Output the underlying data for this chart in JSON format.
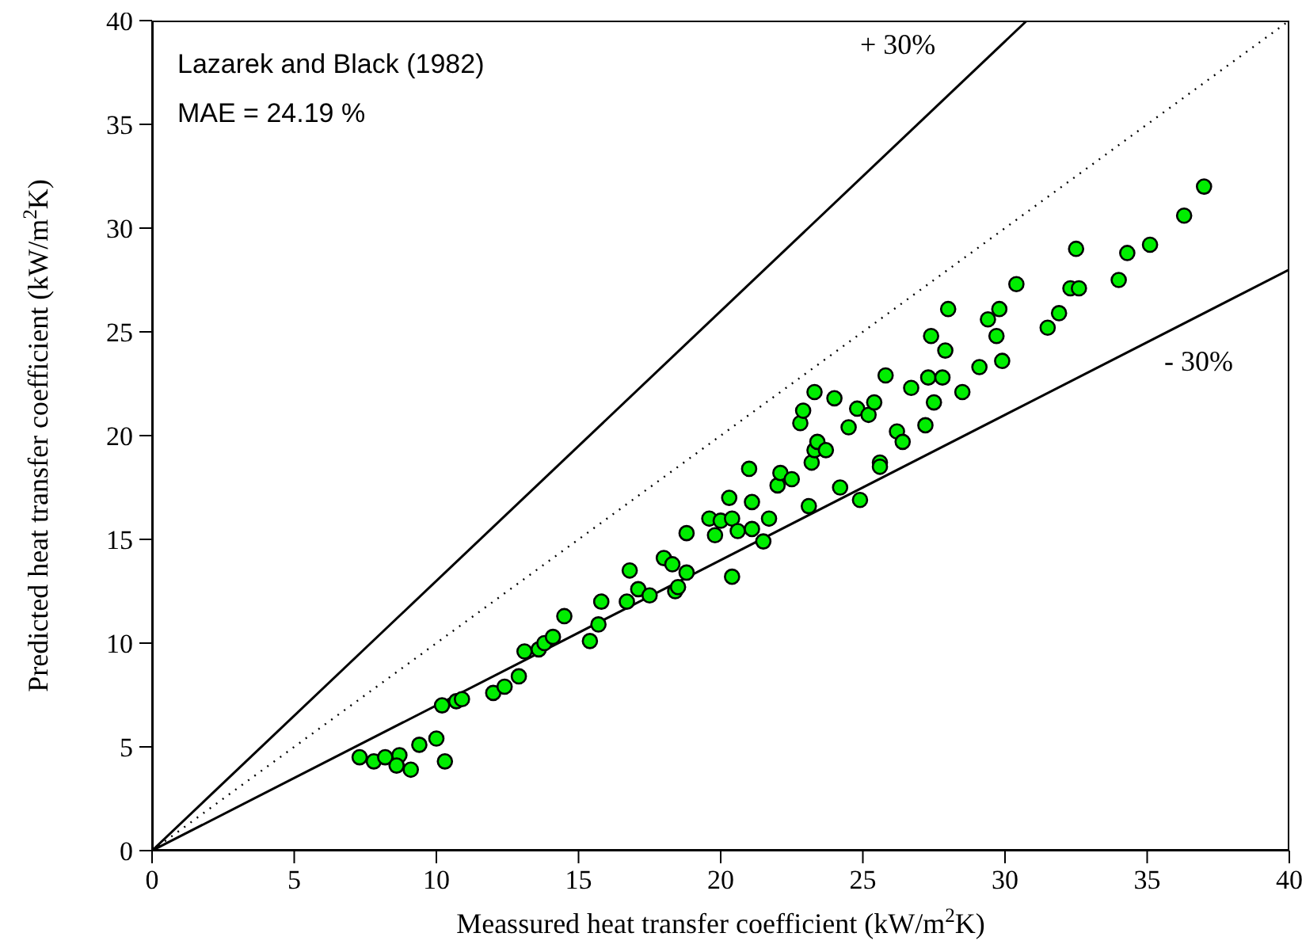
{
  "chart_data": {
    "type": "scatter",
    "xlabel": "Meassured heat transfer coefficient (kW/m$^{2}$K)",
    "ylabel": "Predicted heat transfer coefficient (kW/m$^{2}$K)",
    "xlim": [
      0,
      40
    ],
    "ylim": [
      0,
      40
    ],
    "xticks": [
      0,
      5,
      10,
      15,
      20,
      25,
      30,
      35,
      40
    ],
    "yticks": [
      0,
      5,
      10,
      15,
      20,
      25,
      30,
      35,
      40
    ],
    "grid": false,
    "legend": false,
    "annotations": [
      "Lazarek and Black (1982)",
      "MAE = 24.19 %",
      "+ 30%",
      "- 30%"
    ],
    "series": [
      {
        "marker": "circle",
        "color": "#00ee00",
        "x": [
          7.3,
          7.8,
          8.2,
          8.7,
          8.6,
          9.1,
          9.4,
          10.0,
          10.3,
          10.2,
          10.7,
          10.9,
          12.0,
          12.4,
          12.9,
          13.1,
          13.6,
          13.8,
          14.1,
          14.5,
          15.4,
          15.7,
          15.8,
          16.7,
          16.8,
          17.1,
          17.5,
          18.0,
          18.3,
          18.4,
          18.5,
          18.8,
          18.8,
          19.6,
          19.8,
          20.0,
          20.3,
          20.4,
          20.4,
          20.6,
          21.0,
          21.1,
          21.1,
          21.5,
          21.7,
          22.0,
          22.1,
          22.5,
          22.8,
          22.9,
          23.1,
          23.2,
          23.3,
          23.3,
          23.4,
          23.7,
          24.0,
          24.2,
          24.5,
          24.8,
          24.9,
          25.2,
          25.4,
          25.6,
          25.6,
          25.8,
          26.2,
          26.4,
          26.7,
          27.2,
          27.3,
          27.4,
          27.5,
          27.8,
          27.9,
          28.0,
          28.5,
          29.1,
          29.4,
          29.7,
          29.8,
          29.9,
          30.4,
          31.5,
          31.9,
          32.3,
          32.5,
          32.6,
          34.0,
          34.3,
          35.1,
          36.3,
          37.0
        ],
        "values": [
          4.5,
          4.3,
          4.5,
          4.6,
          4.1,
          3.9,
          5.1,
          5.4,
          4.3,
          7.0,
          7.2,
          7.3,
          7.6,
          7.9,
          8.4,
          9.6,
          9.7,
          10.0,
          10.3,
          11.3,
          10.1,
          10.9,
          12.0,
          12.0,
          13.5,
          12.6,
          12.3,
          14.1,
          13.8,
          12.5,
          12.7,
          13.4,
          15.3,
          16.0,
          15.2,
          15.9,
          17.0,
          13.2,
          16.0,
          15.4,
          18.4,
          16.8,
          15.5,
          14.9,
          16.0,
          17.6,
          18.2,
          17.9,
          20.6,
          21.2,
          16.6,
          18.7,
          19.3,
          22.1,
          19.7,
          19.3,
          21.8,
          17.5,
          20.4,
          21.3,
          16.9,
          21.0,
          21.6,
          18.7,
          18.5,
          22.9,
          20.2,
          19.7,
          22.3,
          20.5,
          22.8,
          24.8,
          21.6,
          22.8,
          24.1,
          26.1,
          22.1,
          23.3,
          25.6,
          24.8,
          26.1,
          23.6,
          27.3,
          25.2,
          25.9,
          27.1,
          29.0,
          27.1,
          27.5,
          28.8,
          29.2,
          30.6,
          32.0
        ]
      },
      {
        "type": "line",
        "color": "#000000",
        "line_style": "solid",
        "x": [
          0,
          30.77
        ],
        "values": [
          0,
          40
        ]
      },
      {
        "type": "line",
        "color": "#000000",
        "line_style": "dotted",
        "x": [
          0,
          40
        ],
        "values": [
          0,
          40
        ]
      },
      {
        "type": "line",
        "color": "#000000",
        "line_style": "solid",
        "x": [
          0,
          40
        ],
        "values": [
          0,
          28
        ]
      }
    ]
  }
}
